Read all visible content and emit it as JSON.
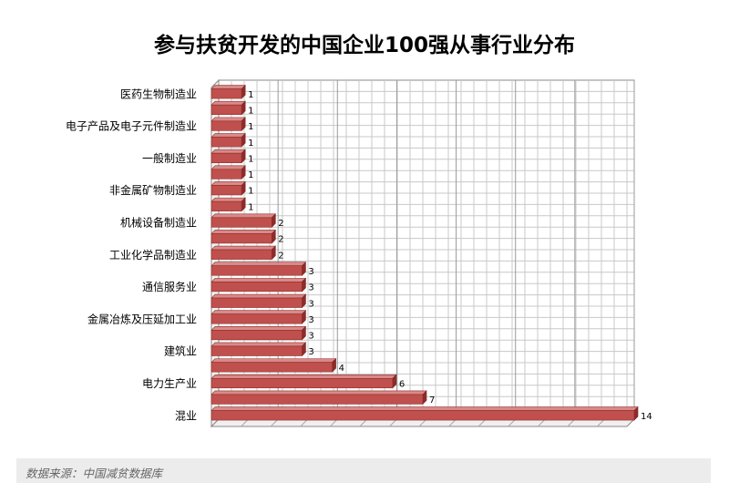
{
  "chart_data": {
    "type": "bar",
    "orientation": "horizontal",
    "title": "参与扶贫开发的中国企业100强从事行业分布",
    "categories": [
      "医药生物制造业",
      "",
      "电子产品及电子元件制造业",
      "",
      "一般制造业",
      "",
      "非金属矿物制造业",
      "",
      "机械设备制造业",
      "",
      "工业化学品制造业",
      "",
      "通信服务业",
      "",
      "金属冶炼及压延加工业",
      "",
      "建筑业",
      "",
      "电力生产业",
      "",
      "混业"
    ],
    "values": [
      1,
      1,
      1,
      1,
      1,
      1,
      1,
      1,
      2,
      2,
      2,
      3,
      3,
      3,
      3,
      3,
      3,
      4,
      6,
      7,
      14
    ],
    "xlim": [
      0,
      14
    ],
    "grid": true,
    "bar_color": "#c0504d"
  },
  "source": "数据来源：中国减贫数据库"
}
